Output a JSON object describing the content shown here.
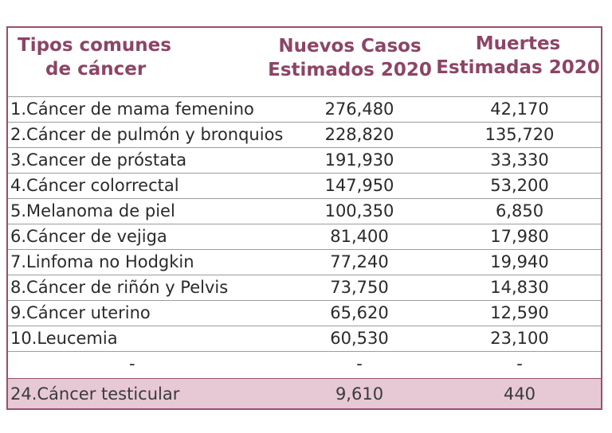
{
  "table": {
    "headers": {
      "type": [
        "Tipos comunes",
        "de cáncer"
      ],
      "cases": [
        "Nuevos Casos",
        "Estimados 2020"
      ],
      "deaths": [
        "Muertes",
        "Estimadas 2020"
      ]
    },
    "rows": [
      {
        "type": "1.Cáncer de mama femenino",
        "cases": "276,480",
        "deaths": "42,170"
      },
      {
        "type": "2.Cáncer de pulmón y bronquios",
        "cases": "228,820",
        "deaths": "135,720"
      },
      {
        "type": "3.Cancer de próstata",
        "cases": "191,930",
        "deaths": "33,330"
      },
      {
        "type": "4.Cáncer colorrectal",
        "cases": "147,950",
        "deaths": "53,200"
      },
      {
        "type": "5.Melanoma de piel",
        "cases": "100,350",
        "deaths": "6,850"
      },
      {
        "type": "6.Cáncer de vejiga",
        "cases": "81,400",
        "deaths": "17,980"
      },
      {
        "type": "7.Linfoma no Hodgkin",
        "cases": "77,240",
        "deaths": "19,940"
      },
      {
        "type": "8.Cáncer de riñón y Pelvis",
        "cases": "73,750",
        "deaths": "14,830"
      },
      {
        "type": "9.Cáncer uterino",
        "cases": "65,620",
        "deaths": "12,590"
      },
      {
        "type": "10.Leucemia",
        "cases": "60,530",
        "deaths": "23,100"
      },
      {
        "type": "-",
        "cases": "-",
        "deaths": "-"
      },
      {
        "type": "24.Cáncer testicular",
        "cases": "9,610",
        "deaths": "440"
      }
    ]
  }
}
